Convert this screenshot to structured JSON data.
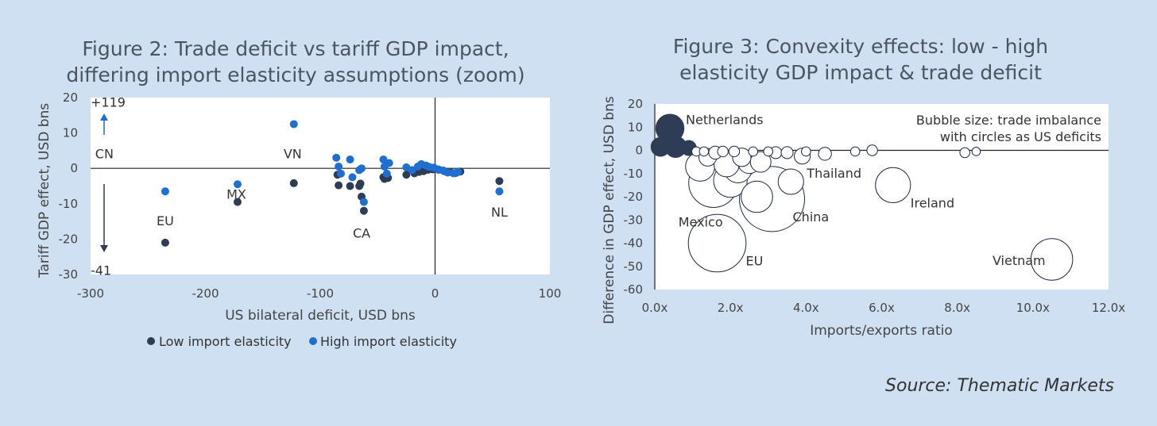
{
  "chart_data": [
    {
      "type": "scatter",
      "title_lines": [
        "Figure 2: Trade deficit vs tariff GDP impact,",
        "differing import elasticity assumptions (zoom)"
      ],
      "xlabel": "US bilateral deficit, USD bns",
      "ylabel": "Tariff GDP effect, USD bns",
      "xlim": [
        -300,
        100
      ],
      "ylim": [
        -30,
        20
      ],
      "xticks": [
        -300,
        -200,
        -100,
        0,
        100
      ],
      "yticks": [
        -30,
        -20,
        -10,
        0,
        10,
        20
      ],
      "colors": {
        "low": "#2e3d55",
        "high": "#1f6fd1",
        "axis": "#222222",
        "plot_bg": "#ffffff"
      },
      "series": [
        {
          "name": "Low import elasticity",
          "points": [
            [
              -235,
              -21
            ],
            [
              -172,
              -9.5
            ],
            [
              -123,
              -4.2
            ],
            [
              -85,
              -1.8
            ],
            [
              -84,
              -4.8
            ],
            [
              -74,
              -5
            ],
            [
              -66,
              -5
            ],
            [
              -65,
              -4.3
            ],
            [
              -64,
              -8
            ],
            [
              -62,
              -12
            ],
            [
              -45,
              -2.5
            ],
            [
              -44,
              -3
            ],
            [
              -41,
              -2.7
            ],
            [
              -25,
              -1.8
            ],
            [
              -18,
              -1.4
            ],
            [
              -14,
              -1
            ],
            [
              -10,
              -0.8
            ],
            [
              -6,
              -0.4
            ],
            [
              -2,
              -0.3
            ],
            [
              3,
              -0.4
            ],
            [
              8,
              -0.8
            ],
            [
              13,
              -1
            ],
            [
              18,
              -1.3
            ],
            [
              22,
              -0.9
            ],
            [
              56,
              -3.6
            ]
          ]
        },
        {
          "name": "High import elasticity",
          "points": [
            [
              -235,
              -6.5
            ],
            [
              -172,
              -4.5
            ],
            [
              -123,
              12.5
            ],
            [
              -86,
              3
            ],
            [
              -84,
              0.5
            ],
            [
              -82,
              -1.5
            ],
            [
              -74,
              2.5
            ],
            [
              -72,
              -2.5
            ],
            [
              -66,
              -0.5
            ],
            [
              -64,
              0
            ],
            [
              -62,
              -9.5
            ],
            [
              -45,
              2.5
            ],
            [
              -44,
              0.5
            ],
            [
              -42,
              -1.5
            ],
            [
              -40,
              1.5
            ],
            [
              -25,
              0.3
            ],
            [
              -20,
              -0.5
            ],
            [
              -15,
              0.5
            ],
            [
              -12,
              1.2
            ],
            [
              -8,
              0.8
            ],
            [
              -5,
              0.4
            ],
            [
              -1,
              0.2
            ],
            [
              3,
              -0.3
            ],
            [
              7,
              -0.6
            ],
            [
              11,
              -1.2
            ],
            [
              16,
              -1.4
            ],
            [
              20,
              -1
            ],
            [
              56,
              -6.5
            ]
          ]
        }
      ],
      "annotations": [
        {
          "text": "CN",
          "x": -288,
          "y": 4
        },
        {
          "text": "VN",
          "x": -124,
          "y": 4
        },
        {
          "text": "MX",
          "x": -173,
          "y": -7.5
        },
        {
          "text": "EU",
          "x": -235,
          "y": -15
        },
        {
          "text": "CA",
          "x": -64,
          "y": -18.5
        },
        {
          "text": "NL",
          "x": 56,
          "y": -12.5
        },
        {
          "text": "+119",
          "x": -288,
          "y": 18.5
        },
        {
          "text": "-41",
          "x": -288,
          "y": -29
        }
      ],
      "legend": [
        "Low import elasticity",
        "High import elasticity"
      ],
      "legend_position": "bottom"
    },
    {
      "type": "scatter",
      "subtype": "bubble",
      "title_lines": [
        "Figure 3: Convexity effects: low - high",
        "elasticity GDP impact & trade deficit"
      ],
      "xlabel": "Imports/exports ratio",
      "ylabel": "Difference in GDP effect, USD bns",
      "xlim": [
        0,
        12
      ],
      "ylim": [
        -60,
        20
      ],
      "xticks": [
        0,
        2,
        4,
        6,
        8,
        10,
        12
      ],
      "xtick_labels": [
        "0.0x",
        "2.0x",
        "4.0x",
        "6.0x",
        "8.0x",
        "10.0x",
        "12.0x"
      ],
      "yticks": [
        -60,
        -50,
        -40,
        -30,
        -20,
        -10,
        0,
        10,
        20
      ],
      "note_lines": [
        "Bubble size: trade imbalance",
        "with circles as US deficits"
      ],
      "colors": {
        "surplus_fill": "#2e3d55",
        "deficit_fill": "#ffffff",
        "deficit_edge": "#1c2a45",
        "plot_bg": "#ffffff"
      },
      "bubbles": [
        {
          "label": "Netherlands",
          "x": 0.4,
          "y": 9.5,
          "size": 56,
          "deficit": false
        },
        {
          "label": "",
          "x": 0.15,
          "y": 1.5,
          "size": 25,
          "deficit": false
        },
        {
          "label": "",
          "x": 0.55,
          "y": 1.5,
          "size": 32,
          "deficit": false
        },
        {
          "label": "",
          "x": 0.9,
          "y": 1,
          "size": 16,
          "deficit": false
        },
        {
          "label": "Vietnam",
          "x": 10.5,
          "y": -47,
          "size": 123,
          "deficit": true
        },
        {
          "label": "China",
          "x": 3.1,
          "y": -21,
          "size": 300,
          "deficit": true
        },
        {
          "label": "EU",
          "x": 1.65,
          "y": -40,
          "size": 235,
          "deficit": true
        },
        {
          "label": "Mexico",
          "x": 1.55,
          "y": -14,
          "size": 172,
          "deficit": true
        },
        {
          "label": "Ireland",
          "x": 6.3,
          "y": -15,
          "size": 87,
          "deficit": true
        },
        {
          "label": "Thailand",
          "x": 3.6,
          "y": -13.5,
          "size": 46,
          "deficit": true
        },
        {
          "label": "",
          "x": 2.7,
          "y": -20,
          "size": 70,
          "deficit": true
        },
        {
          "label": "",
          "x": 2.0,
          "y": -13,
          "size": 80,
          "deficit": true
        },
        {
          "label": "",
          "x": 1.2,
          "y": -7,
          "size": 60,
          "deficit": true
        },
        {
          "label": "",
          "x": 2.2,
          "y": -8,
          "size": 55,
          "deficit": true
        },
        {
          "label": "",
          "x": 1.9,
          "y": -6,
          "size": 45,
          "deficit": true
        },
        {
          "label": "",
          "x": 2.5,
          "y": -5,
          "size": 38,
          "deficit": true
        },
        {
          "label": "",
          "x": 2.8,
          "y": -5,
          "size": 30,
          "deficit": true
        },
        {
          "label": "",
          "x": 2.3,
          "y": -3,
          "size": 24,
          "deficit": true
        },
        {
          "label": "",
          "x": 1.4,
          "y": -3,
          "size": 22,
          "deficit": true
        },
        {
          "label": "",
          "x": 3.9,
          "y": -2.5,
          "size": 18,
          "deficit": true
        },
        {
          "label": "",
          "x": 4.5,
          "y": -1.5,
          "size": 12,
          "deficit": true
        },
        {
          "label": "",
          "x": 3.2,
          "y": -1,
          "size": 10,
          "deficit": true
        },
        {
          "label": "",
          "x": 3.5,
          "y": -1,
          "size": 10,
          "deficit": true
        },
        {
          "label": "",
          "x": 1.6,
          "y": -1,
          "size": 12,
          "deficit": true
        },
        {
          "label": "",
          "x": 1.8,
          "y": -0.5,
          "size": 8,
          "deficit": true
        },
        {
          "label": "",
          "x": 2.1,
          "y": -0.5,
          "size": 8,
          "deficit": true
        },
        {
          "label": "",
          "x": 1.1,
          "y": -0.5,
          "size": 6,
          "deficit": true
        },
        {
          "label": "",
          "x": 1.3,
          "y": -0.5,
          "size": 6,
          "deficit": true
        },
        {
          "label": "",
          "x": 2.6,
          "y": -0.5,
          "size": 6,
          "deficit": true
        },
        {
          "label": "",
          "x": 3.0,
          "y": -0.5,
          "size": 6,
          "deficit": true
        },
        {
          "label": "",
          "x": 4.0,
          "y": -0.5,
          "size": 6,
          "deficit": true
        },
        {
          "label": "",
          "x": 5.3,
          "y": -0.5,
          "size": 6,
          "deficit": true
        },
        {
          "label": "",
          "x": 5.75,
          "y": 0,
          "size": 8,
          "deficit": true
        },
        {
          "label": "",
          "x": 8.2,
          "y": -1,
          "size": 7,
          "deficit": true
        },
        {
          "label": "",
          "x": 8.5,
          "y": -0.5,
          "size": 5,
          "deficit": true
        }
      ]
    }
  ],
  "source": "Source: Thematic Markets"
}
